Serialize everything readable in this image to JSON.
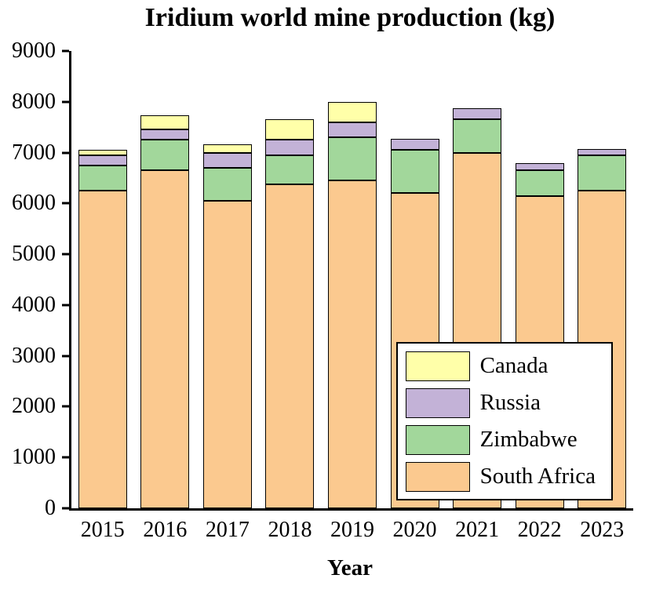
{
  "title": "Iridium world mine production (kg)",
  "chart_data": {
    "type": "bar",
    "stacked": true,
    "title": "Iridium world mine production (kg)",
    "xlabel": "Year",
    "ylabel": "",
    "ylim": [
      0,
      9000
    ],
    "ytick_step": 1000,
    "grid": false,
    "legend_position": "bottom-right",
    "categories": [
      "2015",
      "2016",
      "2017",
      "2018",
      "2019",
      "2020",
      "2021",
      "2022",
      "2023"
    ],
    "series": [
      {
        "name": "South Africa",
        "color": "#FBC98F",
        "values": [
          6250,
          6650,
          6050,
          6380,
          6450,
          6200,
          7000,
          6150,
          6250
        ]
      },
      {
        "name": "Zimbabwe",
        "color": "#A2D79B",
        "values": [
          500,
          600,
          650,
          570,
          850,
          850,
          650,
          500,
          700
        ]
      },
      {
        "name": "Russia",
        "color": "#C3B2D7",
        "values": [
          200,
          200,
          300,
          300,
          300,
          220,
          230,
          150,
          120
        ]
      },
      {
        "name": "Canada",
        "color": "#FFFFA9",
        "values": [
          100,
          280,
          170,
          400,
          400,
          0,
          0,
          0,
          0
        ]
      }
    ],
    "legend": [
      "Canada",
      "Russia",
      "Zimbabwe",
      "South Africa"
    ],
    "axis_color": "#000000",
    "bar_border_color": "#000000"
  }
}
